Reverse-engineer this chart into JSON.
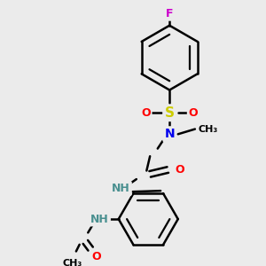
{
  "bg_color": "#ebebeb",
  "atom_colors": {
    "F": "#cc00cc",
    "O": "#ff0000",
    "S": "#cccc00",
    "N": "#0000ee",
    "NH": "#4a9090",
    "C": "#000000"
  },
  "bond_color": "#000000",
  "bond_width": 1.8,
  "fig_size": [
    3.0,
    3.0
  ],
  "dpi": 100
}
